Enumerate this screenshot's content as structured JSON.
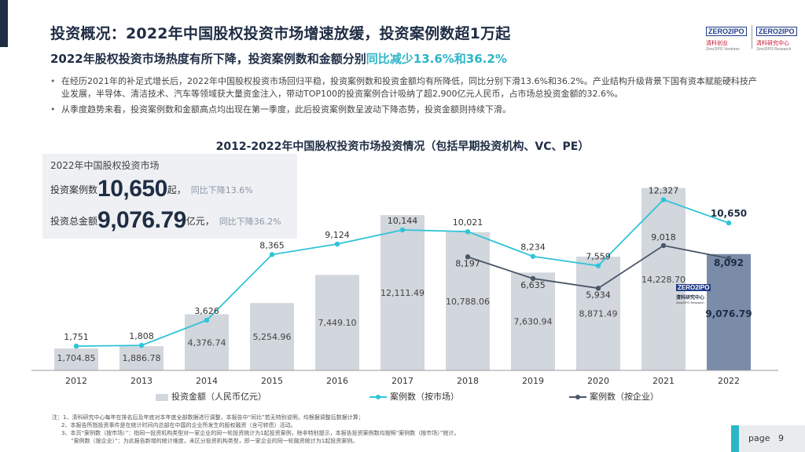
{
  "header": {
    "title": "投资概况：2022年中国股权投资市场增速放缓，投资案例数超1万起",
    "subtitle_main": "2022年股权投资市场热度有所下降，投资案例数和金额分别",
    "subtitle_highlight": "同比减少13.6%和36.2%",
    "logos": [
      {
        "mark": "ZERO2IPO",
        "cn": "清科创业",
        "en": "Zero2IPO Ventures"
      },
      {
        "mark": "ZERO2IPO",
        "cn": "清科研究中心",
        "en": "Zero2IPO Research"
      }
    ]
  },
  "bullets": [
    "在经历2021年的补足式增长后，2022年中国股权投资市场回归平稳，投资案例数和投资金额均有所降低，同比分别下滑13.6%和36.2%。产业结构升级背景下国有资本赋能硬科技产业发展，半导体、清洁技术、汽车等领域获大量资金注入，带动TOP100的投资案例合计吸纳了超2,900亿元人民币，占市场总投资金额的32.6%。",
    "从季度趋势来看，投资案例数和金额高点均出现在第一季度，此后投资案例数呈波动下降态势，投资金额则持续下滑。"
  ],
  "kpi": {
    "heading": "2022年中国股权投资市场",
    "cases_label": "投资案例数",
    "cases_value": "10,650",
    "cases_unit": "起，",
    "cases_change": "同比下降13.6%",
    "amount_label": "投资总金额",
    "amount_value": "9,076.79",
    "amount_unit": "亿元，",
    "amount_change": "同比下降36.2%"
  },
  "chart_data": {
    "type": "bar",
    "title": "2012-2022年中国股权投资市场投资情况（包括早期投资机构、VC、PE）",
    "categories": [
      "2012",
      "2013",
      "2014",
      "2015",
      "2016",
      "2017",
      "2018",
      "2019",
      "2020",
      "2021",
      "2022"
    ],
    "series": [
      {
        "name": "投资金额（人民币亿元）",
        "kind": "bar",
        "values": [
          1704.85,
          1886.78,
          4376.74,
          5254.96,
          7449.1,
          12111.49,
          10788.06,
          7630.94,
          8871.49,
          14228.7,
          9076.79
        ],
        "labels": [
          "1,704.85",
          "1,886.78",
          "4,376.74",
          "5,254.96",
          "7,449.10",
          "12,111.49",
          "10,788.06",
          "7,630.94",
          "8,871.49",
          "14,228.70",
          "9,076.79"
        ]
      },
      {
        "name": "案例数（按市场）",
        "kind": "line",
        "values": [
          1751,
          1808,
          3626,
          8365,
          9124,
          10144,
          10021,
          8234,
          7559,
          12327,
          10650
        ],
        "labels": [
          "1,751",
          "1,808",
          "3,626",
          "8,365",
          "9,124",
          "10,144",
          "10,021",
          "8,234",
          "7,559",
          "12,327",
          "10,650"
        ]
      },
      {
        "name": "案例数（按企业）",
        "kind": "line",
        "values": [
          null,
          null,
          null,
          null,
          null,
          null,
          8197,
          6635,
          5934,
          9018,
          8092
        ],
        "labels": [
          "",
          "",
          "",
          "",
          "",
          "",
          "8,197",
          "6,635",
          "5,934",
          "9,018",
          "8,092"
        ]
      }
    ],
    "bar_ylim": [
      0,
      15000
    ],
    "line_ylim": [
      0,
      14000
    ],
    "colors": {
      "bar": "#d2d6dd",
      "bar_highlight": "#7b8ca8",
      "line_market": "#2ec4d8",
      "line_enterprise": "#4a5668"
    },
    "grid": false,
    "legend_position": "bottom"
  },
  "in_chart_logo": {
    "mark": "ZERO2IPO",
    "cn": "清科研究中心",
    "en": "Zero2IPO Research"
  },
  "notes": [
    "注：1、清科研究中心每年在排名后及年底对本年度全部数据进行调整，本报告中“同比”若无特别说明，均根据调整后数据计算；",
    "2、本报告所指投资事件是在统计时间内总部在中国的企业所发生的股权融资（含可转债）活动。",
    "3、本页“案例数（按市场）”：指同一投资机构类型对一家企业的同一轮投资统计为1起投资案例，除非特别提示，本报告投资案例数均按照“案例数（按市场）”统计。",
    "“案例数（按企业）”：为此报告新增的统计维度，未区分投资机构类型，即一家企业的同一轮融资统计为1起投资案例。"
  ],
  "footer": {
    "page_label": "page",
    "page_number": "9"
  }
}
